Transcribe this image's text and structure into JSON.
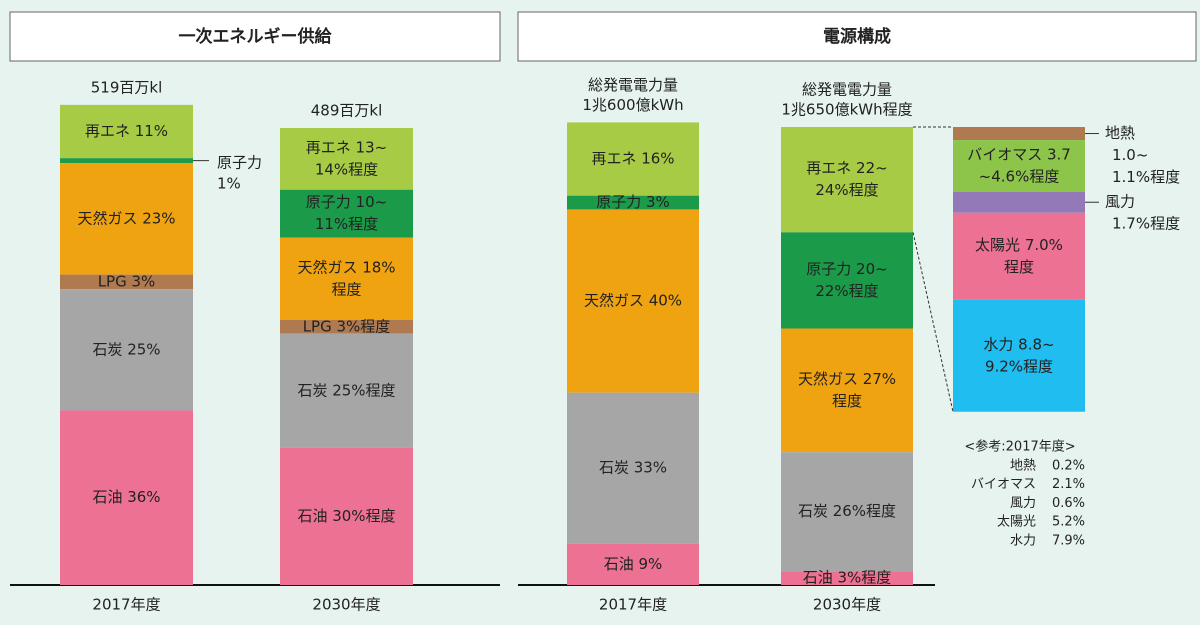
{
  "chart_data": [
    {
      "type": "stacked_bar",
      "title": "一次エネルギー供給",
      "ylim": [
        0,
        100
      ],
      "bars": [
        {
          "category": "2017年度",
          "total": 519,
          "total_label": [
            "519百万kl"
          ],
          "segments": [
            {
              "value": 11,
              "value_label": [
                "再エネ 11%"
              ],
              "color": "#a8cb45"
            },
            {
              "value": 1,
              "value_label": [
                "原子力",
                "1%"
              ],
              "color": "#1b9a4a"
            },
            {
              "value": 23,
              "value_label": [
                "天然ガス 23%"
              ],
              "color": "#f0a311"
            },
            {
              "value": 3,
              "value_label": [
                "LPG 3%"
              ],
              "color": "#b07a50"
            },
            {
              "value": 25,
              "value_label": [
                "石炭 25%"
              ],
              "color": "#a6a6a6"
            },
            {
              "value": 36,
              "value_label": [
                "石油 36%"
              ],
              "color": "#ec7192"
            }
          ]
        },
        {
          "category": "2030年度",
          "total": 489,
          "total_label": [
            "489百万kl"
          ],
          "segments": [
            {
              "value": 13.5,
              "value_label": [
                "再エネ 13~",
                "14%程度"
              ],
              "color": "#a8cb45"
            },
            {
              "value": 10.5,
              "value_label": [
                "原子力 10~",
                "11%程度"
              ],
              "color": "#1b9a4a"
            },
            {
              "value": 18,
              "value_label": [
                "天然ガス 18%",
                "程度"
              ],
              "color": "#f0a311"
            },
            {
              "value": 3,
              "value_label": [
                "LPG 3%程度"
              ],
              "color": "#b07a50"
            },
            {
              "value": 25,
              "value_label": [
                "石炭 25%程度"
              ],
              "color": "#a6a6a6"
            },
            {
              "value": 30,
              "value_label": [
                "石油 30%程度"
              ],
              "color": "#ec7192"
            }
          ]
        }
      ]
    },
    {
      "type": "stacked_bar",
      "title": "電源構成",
      "ylim": [
        0,
        100
      ],
      "bars": [
        {
          "category": "2017年度",
          "total_label": [
            "総発電電力量",
            "1兆600億kWh"
          ],
          "segments": [
            {
              "value": 16,
              "value_label": [
                "再エネ 16%"
              ],
              "color": "#a8cb45"
            },
            {
              "value": 3,
              "value_label": [
                "原子力 3%"
              ],
              "color": "#1b9a4a"
            },
            {
              "value": 40,
              "value_label": [
                "天然ガス 40%"
              ],
              "color": "#f0a311"
            },
            {
              "value": 33,
              "value_label": [
                "石炭 33%"
              ],
              "color": "#a6a6a6"
            },
            {
              "value": 9,
              "value_label": [
                "石油 9%"
              ],
              "color": "#ec7192"
            }
          ]
        },
        {
          "category": "2030年度",
          "total_label": [
            "総発電電力量",
            "1兆650億kWh程度"
          ],
          "segments": [
            {
              "value": 23,
              "value_label": [
                "再エネ 22~",
                "24%程度"
              ],
              "color": "#a8cb45"
            },
            {
              "value": 21,
              "value_label": [
                "原子力 20~",
                "22%程度"
              ],
              "color": "#1b9a4a"
            },
            {
              "value": 27,
              "value_label": [
                "天然ガス 27%",
                "程度"
              ],
              "color": "#f0a311"
            },
            {
              "value": 26,
              "value_label": [
                "石炭 26%程度"
              ],
              "color": "#a6a6a6"
            },
            {
              "value": 3,
              "value_label": [
                "石油 3%程度"
              ],
              "color": "#ec7192"
            }
          ]
        }
      ],
      "breakdown": {
        "ylim": [
          0,
          23
        ],
        "segments": [
          {
            "value": 1.05,
            "value_label": [
              "地熱",
              "1.0~",
              "1.1%程度"
            ],
            "color": "#b07a50"
          },
          {
            "value": 4.15,
            "value_label": [
              "バイオマス 3.7",
              "~4.6%程度"
            ],
            "color": "#8dc54b"
          },
          {
            "value": 1.7,
            "value_label": [
              "風力",
              "1.7%程度"
            ],
            "color": "#9479b8"
          },
          {
            "value": 7.0,
            "value_label": [
              "太陽光 7.0%",
              "程度"
            ],
            "color": "#ec7192"
          },
          {
            "value": 9.0,
            "value_label": [
              "水力 8.8~",
              "9.2%程度"
            ],
            "color": "#1fbdf0"
          }
        ]
      },
      "reference": {
        "title": "<参考:2017年度>",
        "rows": [
          [
            "地熱",
            "0.2%"
          ],
          [
            "バイオマス",
            "2.1%"
          ],
          [
            "風力",
            "0.6%"
          ],
          [
            "太陽光",
            "5.2%"
          ],
          [
            "水力",
            "7.9%"
          ]
        ]
      }
    }
  ]
}
